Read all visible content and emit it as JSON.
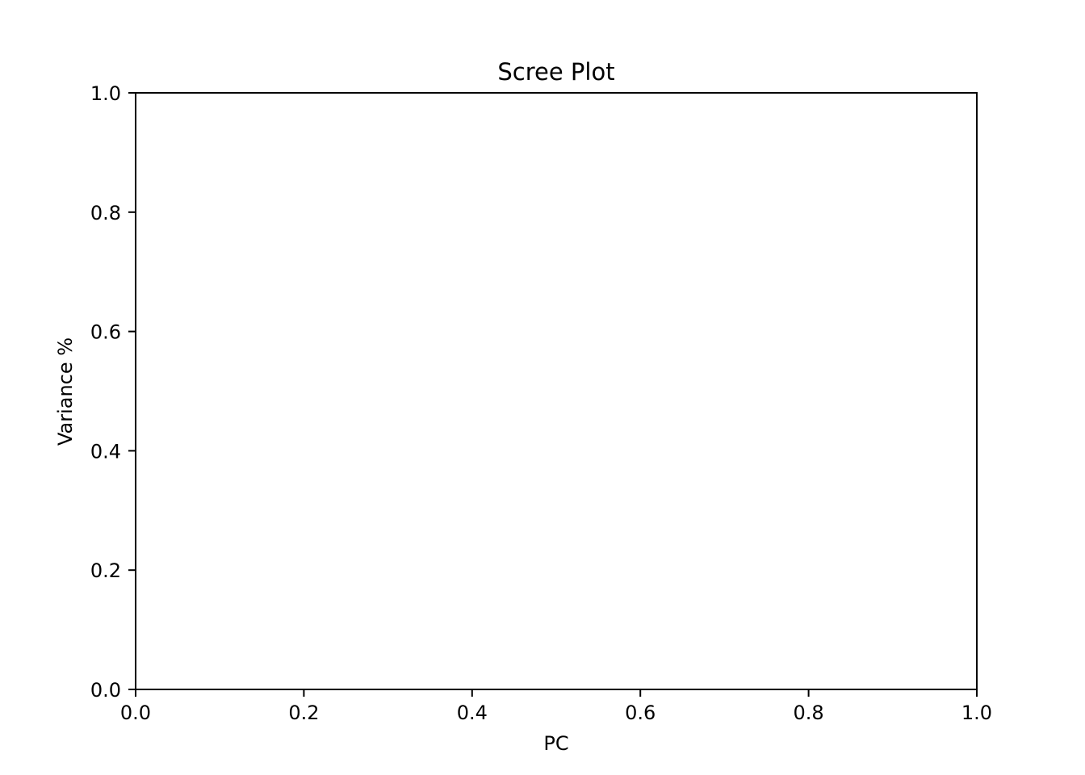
{
  "chart_data": {
    "type": "line",
    "title": "Scree Plot",
    "xlabel": "PC",
    "ylabel": "Variance %",
    "xlim": [
      0.0,
      1.0
    ],
    "ylim": [
      0.0,
      1.0
    ],
    "xticks": [
      "0.0",
      "0.2",
      "0.4",
      "0.6",
      "0.8",
      "1.0"
    ],
    "yticks": [
      "0.0",
      "0.2",
      "0.4",
      "0.6",
      "0.8",
      "1.0"
    ],
    "series": [],
    "grid": false,
    "colors": {
      "axis": "#000000",
      "background": "#ffffff"
    }
  }
}
